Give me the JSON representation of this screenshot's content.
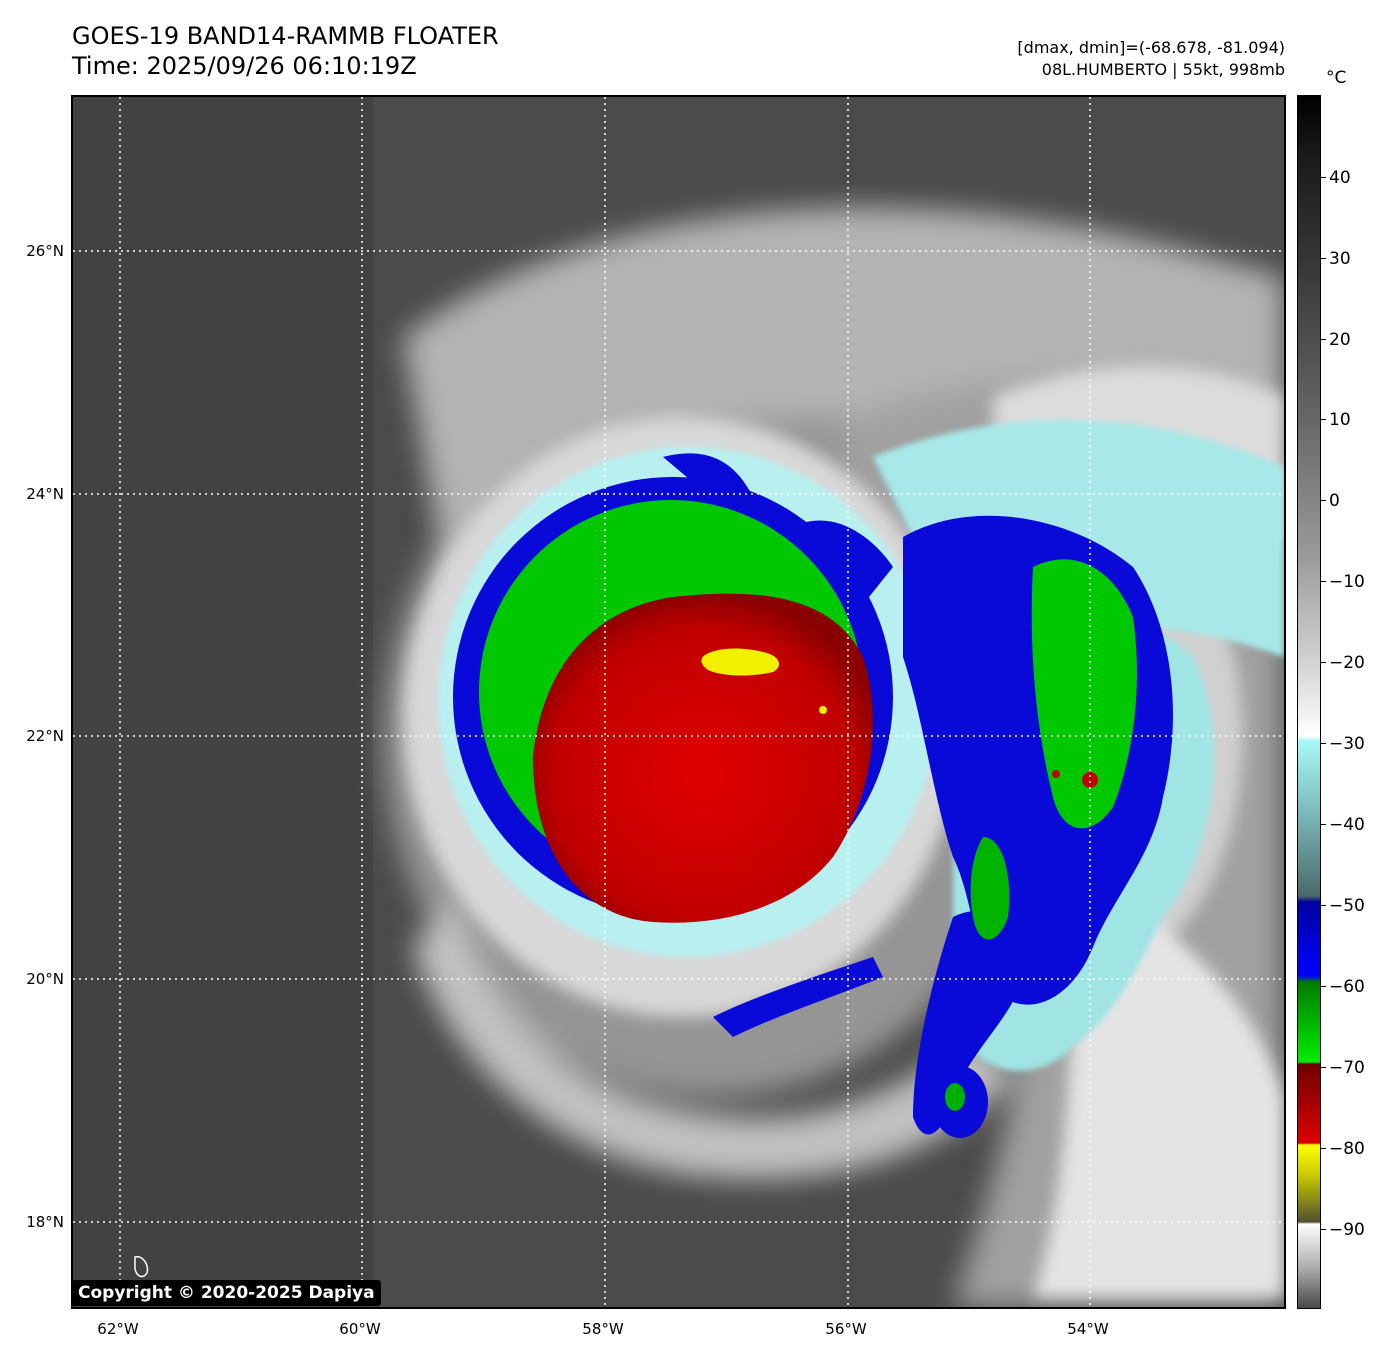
{
  "header": {
    "title_line1": "GOES-19 BAND14-RAMMB FLOATER",
    "title_line2": "Time: 2025/09/26 06:10:19Z",
    "meta_line1": "[dmax, dmin]=(-68.678, -81.094)",
    "meta_line2": "08L.HUMBERTO | 55kt, 998mb"
  },
  "map": {
    "lat_labels": [
      "26°N",
      "24°N",
      "22°N",
      "20°N",
      "18°N"
    ],
    "lon_labels": [
      "62°W",
      "60°W",
      "58°W",
      "56°W",
      "54°W"
    ],
    "gridlines": "dotted",
    "colors": {
      "background": "#4a4a4a",
      "cyan": "#a8f0f0",
      "blue": "#0a0ad8",
      "green": "#00c800",
      "red": "#d80000",
      "yellow": "#f0f000"
    }
  },
  "colorbar": {
    "unit": "°C",
    "tick_labels": [
      "40",
      "30",
      "20",
      "10",
      "0",
      "−10",
      "−20",
      "−30",
      "−40",
      "−50",
      "−60",
      "−70",
      "−80",
      "−90"
    ]
  },
  "footer": {
    "copyright": "Copyright © 2020-2025 Dapiya"
  }
}
